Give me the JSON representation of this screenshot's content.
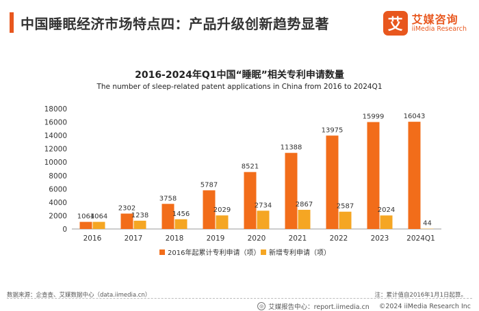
{
  "header": {
    "title": "中国睡眠经济市场特点四：产品升级创新趋势显著",
    "logo_mark": "艾",
    "logo_cn": "艾媒咨询",
    "logo_en": "iiMedia Research",
    "accent_color": "#e8571e"
  },
  "chart_data": {
    "type": "bar",
    "title": "2016-2024年Q1中国“睡眠”相关专利申请数量",
    "subtitle": "The number of sleep-related patent applications in China from 2016 to 2024Q1",
    "categories": [
      "2016",
      "2017",
      "2018",
      "2019",
      "2020",
      "2021",
      "2022",
      "2023",
      "2024Q1"
    ],
    "series": [
      {
        "name": "2016年起累计专利申请（项）",
        "color": "#f26d1a",
        "values": [
          1064,
          2302,
          3758,
          5787,
          8521,
          11388,
          13975,
          15999,
          16043
        ]
      },
      {
        "name": "新增专利申请（项）",
        "color": "#f5a623",
        "values": [
          1064,
          1238,
          1456,
          2029,
          2734,
          2867,
          2587,
          2024,
          44
        ]
      }
    ],
    "ylim": [
      0,
      18000
    ],
    "yticks": [
      0,
      2000,
      4000,
      6000,
      8000,
      10000,
      12000,
      14000,
      16000,
      18000
    ],
    "legend_position": "bottom",
    "grid": false
  },
  "footer": {
    "source": "数据来源：企查查、艾媒数据中心（data.iimedia.cn）",
    "note": "注：累计值自2016年1月1日起算。",
    "center": "艾媒报告中心：report.iimedia.cn",
    "copyright": "©2024  iiMedia Research Inc"
  }
}
